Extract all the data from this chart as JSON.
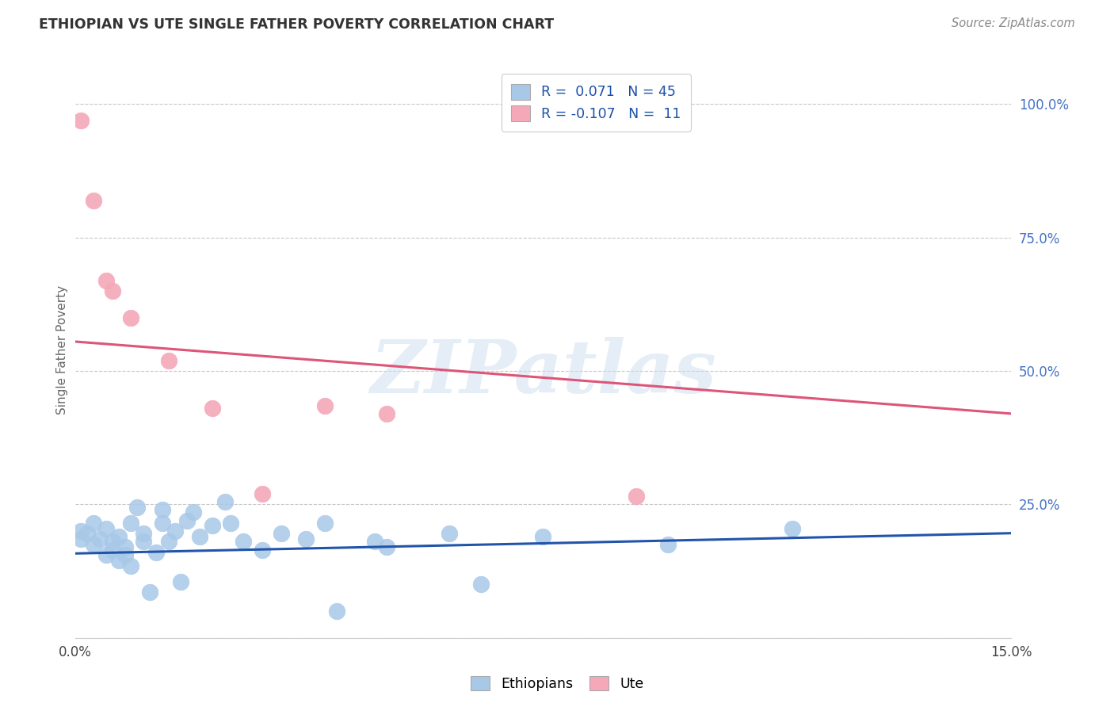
{
  "title": "ETHIOPIAN VS UTE SINGLE FATHER POVERTY CORRELATION CHART",
  "source": "Source: ZipAtlas.com",
  "ylabel": "Single Father Poverty",
  "watermark": "ZIPatlas",
  "xlim": [
    0.0,
    0.15
  ],
  "ylim": [
    0.0,
    1.08
  ],
  "yticks": [
    0.0,
    0.25,
    0.5,
    0.75,
    1.0
  ],
  "ytick_labels": [
    "",
    "25.0%",
    "50.0%",
    "75.0%",
    "100.0%"
  ],
  "legend_r1": "R =  0.071",
  "legend_n1": "N = 45",
  "legend_r2": "R = -0.107",
  "legend_n2": "N =  11",
  "ethiopian_color": "#a8c8e8",
  "ute_color": "#f4a8b8",
  "trend_ethiopian_color": "#2255aa",
  "trend_ute_color": "#dd5577",
  "ethiopian_x": [
    0.001,
    0.001,
    0.002,
    0.003,
    0.003,
    0.004,
    0.005,
    0.005,
    0.006,
    0.006,
    0.007,
    0.007,
    0.008,
    0.008,
    0.009,
    0.009,
    0.01,
    0.011,
    0.011,
    0.012,
    0.013,
    0.014,
    0.014,
    0.015,
    0.016,
    0.017,
    0.018,
    0.019,
    0.02,
    0.022,
    0.024,
    0.025,
    0.027,
    0.03,
    0.033,
    0.037,
    0.04,
    0.042,
    0.048,
    0.05,
    0.06,
    0.065,
    0.075,
    0.095,
    0.115
  ],
  "ethiopian_y": [
    0.2,
    0.185,
    0.195,
    0.175,
    0.215,
    0.185,
    0.155,
    0.205,
    0.165,
    0.18,
    0.145,
    0.19,
    0.155,
    0.17,
    0.135,
    0.215,
    0.245,
    0.195,
    0.18,
    0.085,
    0.16,
    0.215,
    0.24,
    0.18,
    0.2,
    0.105,
    0.22,
    0.235,
    0.19,
    0.21,
    0.255,
    0.215,
    0.18,
    0.165,
    0.195,
    0.185,
    0.215,
    0.05,
    0.18,
    0.17,
    0.195,
    0.1,
    0.19,
    0.175,
    0.205
  ],
  "ute_x": [
    0.001,
    0.003,
    0.005,
    0.006,
    0.009,
    0.015,
    0.022,
    0.03,
    0.04,
    0.05,
    0.09
  ],
  "ute_y": [
    0.97,
    0.82,
    0.67,
    0.65,
    0.6,
    0.52,
    0.43,
    0.27,
    0.435,
    0.42,
    0.265
  ],
  "ethiopian_trend_x": [
    0.0,
    0.15
  ],
  "ethiopian_trend_y": [
    0.158,
    0.196
  ],
  "ute_trend_x": [
    0.0,
    0.15
  ],
  "ute_trend_y": [
    0.555,
    0.42
  ],
  "background_color": "#ffffff",
  "grid_color": "#c8c8c8",
  "title_color": "#333333",
  "right_tick_color": "#4472c4"
}
